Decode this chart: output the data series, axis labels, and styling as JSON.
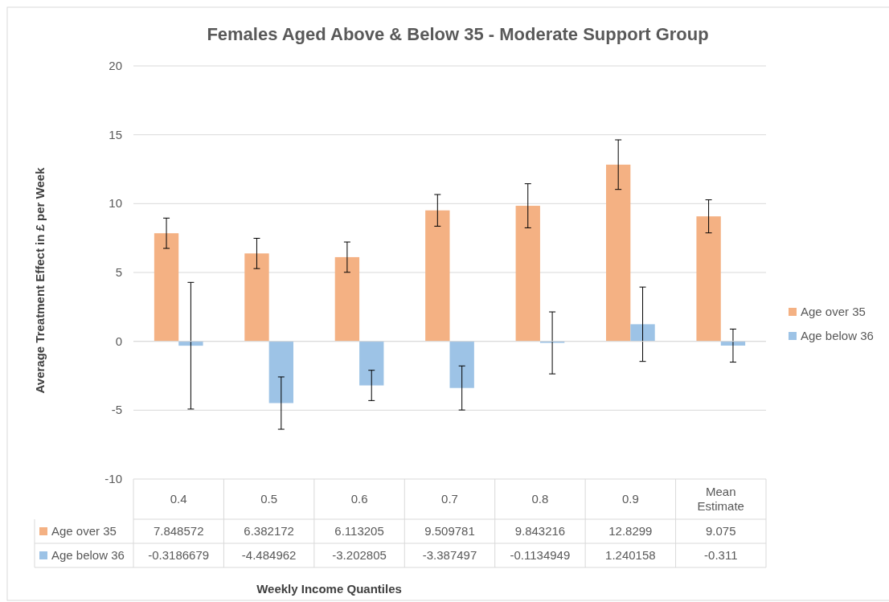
{
  "chart_data": {
    "type": "bar",
    "title": "Females Aged Above & Below 35 - Moderate Support Group",
    "annotations": [
      "Weekly Income Quantiles"
    ],
    "ylabel": "Average Treatment Effect in £ per Week",
    "categories": [
      "0.4",
      "0.5",
      "0.6",
      "0.7",
      "0.8",
      "0.9",
      "Mean Estimate"
    ],
    "series": [
      {
        "name": "Age over 35",
        "color": "#f4b183",
        "values": [
          7.848572,
          6.382172,
          6.113205,
          9.509781,
          9.843216,
          12.8299,
          9.075
        ],
        "errors": [
          1.1,
          1.1,
          1.1,
          1.15,
          1.6,
          1.8,
          1.2
        ]
      },
      {
        "name": "Age below 36",
        "color": "#9dc3e6",
        "values": [
          -0.3186679,
          -4.484962,
          -3.202805,
          -3.387497,
          -0.1134949,
          1.240158,
          -0.311
        ],
        "errors": [
          4.6,
          1.9,
          1.1,
          1.6,
          2.25,
          2.7,
          1.2
        ]
      }
    ],
    "ylim": [
      -10,
      20
    ],
    "yticks": [
      -10,
      -5,
      0,
      5,
      10,
      15,
      20
    ],
    "grid": "y",
    "legend": "right",
    "data_labels": true
  }
}
